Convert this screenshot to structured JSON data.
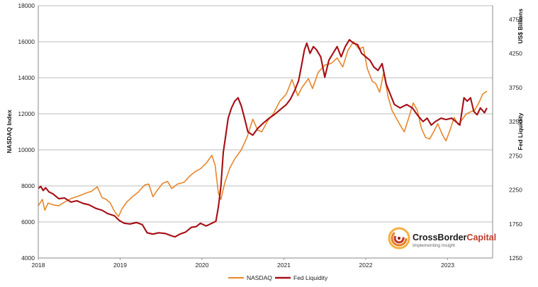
{
  "chart_data": {
    "type": "line",
    "xlabel": "",
    "ylabel_left": "NASDAQ Index",
    "ylabel_right_top": "US$ Billions",
    "ylabel_right": "Fed Liquidity",
    "x_ticks": [
      "2018",
      "2019",
      "2020",
      "2021",
      "2022",
      "2023"
    ],
    "xlim": [
      2018.0,
      2023.55
    ],
    "y_left": {
      "lim": [
        4000,
        18000
      ],
      "ticks": [
        4000,
        6000,
        8000,
        10000,
        12000,
        14000,
        16000,
        18000
      ]
    },
    "y_right": {
      "lim": [
        1250,
        4950
      ],
      "ticks": [
        1250,
        1750,
        2250,
        2750,
        3250,
        3750,
        4250,
        4750
      ]
    },
    "grid": true,
    "legend_position": "bottom-center",
    "series": [
      {
        "name": "NASDAQ",
        "color": "#E8862A",
        "axis": "left",
        "points": [
          [
            2018.0,
            6900
          ],
          [
            2018.05,
            7250
          ],
          [
            2018.08,
            6650
          ],
          [
            2018.12,
            7050
          ],
          [
            2018.18,
            6950
          ],
          [
            2018.25,
            6900
          ],
          [
            2018.32,
            7100
          ],
          [
            2018.4,
            7300
          ],
          [
            2018.5,
            7450
          ],
          [
            2018.58,
            7600
          ],
          [
            2018.65,
            7700
          ],
          [
            2018.72,
            7950
          ],
          [
            2018.78,
            7350
          ],
          [
            2018.83,
            7250
          ],
          [
            2018.88,
            7050
          ],
          [
            2018.93,
            6600
          ],
          [
            2018.98,
            6300
          ],
          [
            2019.02,
            6700
          ],
          [
            2019.08,
            7100
          ],
          [
            2019.15,
            7400
          ],
          [
            2019.22,
            7650
          ],
          [
            2019.3,
            8050
          ],
          [
            2019.35,
            8100
          ],
          [
            2019.4,
            7400
          ],
          [
            2019.46,
            7800
          ],
          [
            2019.52,
            8150
          ],
          [
            2019.58,
            8250
          ],
          [
            2019.63,
            7850
          ],
          [
            2019.7,
            8100
          ],
          [
            2019.78,
            8200
          ],
          [
            2019.85,
            8550
          ],
          [
            2019.92,
            8800
          ],
          [
            2019.98,
            8950
          ],
          [
            2020.05,
            9250
          ],
          [
            2020.12,
            9700
          ],
          [
            2020.16,
            9150
          ],
          [
            2020.2,
            7600
          ],
          [
            2020.23,
            7250
          ],
          [
            2020.28,
            8200
          ],
          [
            2020.34,
            9000
          ],
          [
            2020.4,
            9500
          ],
          [
            2020.48,
            10000
          ],
          [
            2020.55,
            10700
          ],
          [
            2020.62,
            11700
          ],
          [
            2020.68,
            11100
          ],
          [
            2020.73,
            11000
          ],
          [
            2020.8,
            11600
          ],
          [
            2020.87,
            12000
          ],
          [
            2020.95,
            12700
          ],
          [
            2021.03,
            13100
          ],
          [
            2021.1,
            13900
          ],
          [
            2021.17,
            13000
          ],
          [
            2021.22,
            13450
          ],
          [
            2021.3,
            13950
          ],
          [
            2021.35,
            13400
          ],
          [
            2021.42,
            14300
          ],
          [
            2021.5,
            14700
          ],
          [
            2021.58,
            14800
          ],
          [
            2021.65,
            15100
          ],
          [
            2021.72,
            14600
          ],
          [
            2021.78,
            15500
          ],
          [
            2021.85,
            16000
          ],
          [
            2021.88,
            15800
          ],
          [
            2021.92,
            15600
          ],
          [
            2021.97,
            15700
          ],
          [
            2022.02,
            14500
          ],
          [
            2022.08,
            13800
          ],
          [
            2022.12,
            13700
          ],
          [
            2022.17,
            13200
          ],
          [
            2022.22,
            14300
          ],
          [
            2022.27,
            13000
          ],
          [
            2022.32,
            12200
          ],
          [
            2022.38,
            11700
          ],
          [
            2022.43,
            11300
          ],
          [
            2022.47,
            11000
          ],
          [
            2022.52,
            11700
          ],
          [
            2022.58,
            12600
          ],
          [
            2022.63,
            12200
          ],
          [
            2022.68,
            11200
          ],
          [
            2022.73,
            10700
          ],
          [
            2022.78,
            10600
          ],
          [
            2022.83,
            11000
          ],
          [
            2022.88,
            11450
          ],
          [
            2022.93,
            10900
          ],
          [
            2022.98,
            10500
          ],
          [
            2023.03,
            11100
          ],
          [
            2023.08,
            11800
          ],
          [
            2023.13,
            11400
          ],
          [
            2023.18,
            11700
          ],
          [
            2023.23,
            12000
          ],
          [
            2023.28,
            12100
          ],
          [
            2023.33,
            12200
          ],
          [
            2023.38,
            12600
          ],
          [
            2023.43,
            13100
          ],
          [
            2023.48,
            13250
          ]
        ]
      },
      {
        "name": "Fed Liquidity",
        "color": "#A50F15",
        "axis": "right",
        "points": [
          [
            2018.0,
            2270
          ],
          [
            2018.03,
            2300
          ],
          [
            2018.06,
            2240
          ],
          [
            2018.09,
            2280
          ],
          [
            2018.13,
            2220
          ],
          [
            2018.18,
            2190
          ],
          [
            2018.25,
            2120
          ],
          [
            2018.32,
            2130
          ],
          [
            2018.4,
            2070
          ],
          [
            2018.47,
            2090
          ],
          [
            2018.55,
            2050
          ],
          [
            2018.62,
            2030
          ],
          [
            2018.7,
            1980
          ],
          [
            2018.78,
            1950
          ],
          [
            2018.85,
            1900
          ],
          [
            2018.93,
            1870
          ],
          [
            2018.99,
            1800
          ],
          [
            2019.05,
            1760
          ],
          [
            2019.12,
            1750
          ],
          [
            2019.2,
            1770
          ],
          [
            2019.27,
            1740
          ],
          [
            2019.33,
            1620
          ],
          [
            2019.4,
            1600
          ],
          [
            2019.47,
            1620
          ],
          [
            2019.55,
            1610
          ],
          [
            2019.62,
            1580
          ],
          [
            2019.67,
            1560
          ],
          [
            2019.73,
            1600
          ],
          [
            2019.8,
            1630
          ],
          [
            2019.87,
            1700
          ],
          [
            2019.93,
            1710
          ],
          [
            2019.98,
            1760
          ],
          [
            2020.05,
            1720
          ],
          [
            2020.12,
            1760
          ],
          [
            2020.17,
            1790
          ],
          [
            2020.2,
            2000
          ],
          [
            2020.23,
            2300
          ],
          [
            2020.26,
            2800
          ],
          [
            2020.29,
            3050
          ],
          [
            2020.32,
            3300
          ],
          [
            2020.36,
            3450
          ],
          [
            2020.4,
            3550
          ],
          [
            2020.44,
            3600
          ],
          [
            2020.48,
            3480
          ],
          [
            2020.52,
            3300
          ],
          [
            2020.56,
            3100
          ],
          [
            2020.62,
            3050
          ],
          [
            2020.68,
            3150
          ],
          [
            2020.75,
            3230
          ],
          [
            2020.82,
            3300
          ],
          [
            2020.88,
            3350
          ],
          [
            2020.93,
            3400
          ],
          [
            2020.98,
            3450
          ],
          [
            2021.03,
            3500
          ],
          [
            2021.08,
            3580
          ],
          [
            2021.13,
            3700
          ],
          [
            2021.18,
            3850
          ],
          [
            2021.22,
            4100
          ],
          [
            2021.25,
            4300
          ],
          [
            2021.28,
            4400
          ],
          [
            2021.32,
            4250
          ],
          [
            2021.36,
            4350
          ],
          [
            2021.4,
            4300
          ],
          [
            2021.45,
            4200
          ],
          [
            2021.5,
            3900
          ],
          [
            2021.55,
            4150
          ],
          [
            2021.6,
            4250
          ],
          [
            2021.65,
            4350
          ],
          [
            2021.7,
            4200
          ],
          [
            2021.75,
            4350
          ],
          [
            2021.8,
            4450
          ],
          [
            2021.85,
            4400
          ],
          [
            2021.9,
            4380
          ],
          [
            2021.95,
            4250
          ],
          [
            2022.0,
            4200
          ],
          [
            2022.05,
            4150
          ],
          [
            2022.1,
            4050
          ],
          [
            2022.15,
            4000
          ],
          [
            2022.2,
            4100
          ],
          [
            2022.25,
            3800
          ],
          [
            2022.3,
            3650
          ],
          [
            2022.35,
            3500
          ],
          [
            2022.42,
            3450
          ],
          [
            2022.5,
            3500
          ],
          [
            2022.57,
            3450
          ],
          [
            2022.63,
            3350
          ],
          [
            2022.7,
            3250
          ],
          [
            2022.75,
            3300
          ],
          [
            2022.8,
            3200
          ],
          [
            2022.85,
            3250
          ],
          [
            2022.92,
            3300
          ],
          [
            2022.98,
            3280
          ],
          [
            2023.05,
            3300
          ],
          [
            2023.1,
            3250
          ],
          [
            2023.15,
            3200
          ],
          [
            2023.2,
            3600
          ],
          [
            2023.24,
            3550
          ],
          [
            2023.28,
            3600
          ],
          [
            2023.32,
            3400
          ],
          [
            2023.36,
            3350
          ],
          [
            2023.4,
            3450
          ],
          [
            2023.45,
            3380
          ],
          [
            2023.48,
            3450
          ]
        ]
      }
    ]
  },
  "brand": {
    "name_part1": "CrossBorder",
    "name_part2": "Capital",
    "tagline": "Implementing Insight",
    "color_dark": "#1a1a1a",
    "color_accent": "#C0392B"
  }
}
